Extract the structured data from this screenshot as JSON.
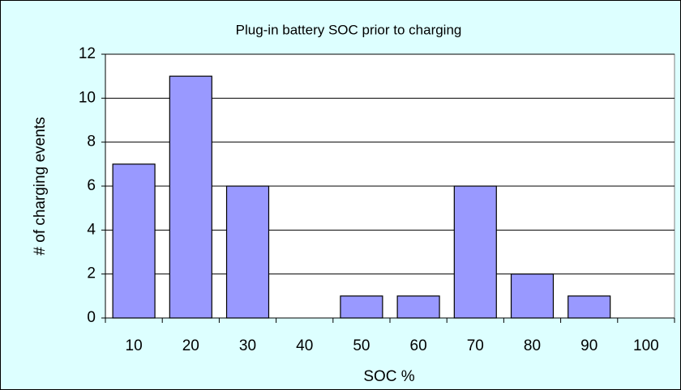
{
  "chart_data": {
    "type": "bar",
    "title": "Plug-in battery SOC prior to charging",
    "x_label": "SOC %",
    "y_label": "# of charging events",
    "categories": [
      "10",
      "20",
      "30",
      "40",
      "50",
      "60",
      "70",
      "80",
      "90",
      "100"
    ],
    "values": [
      7,
      11,
      6,
      0,
      1,
      1,
      6,
      2,
      1,
      0
    ],
    "color": "#9999ff",
    "ylim": [
      0,
      12
    ],
    "yticks": [
      0,
      2,
      4,
      6,
      8,
      10,
      12
    ],
    "grid": true
  }
}
